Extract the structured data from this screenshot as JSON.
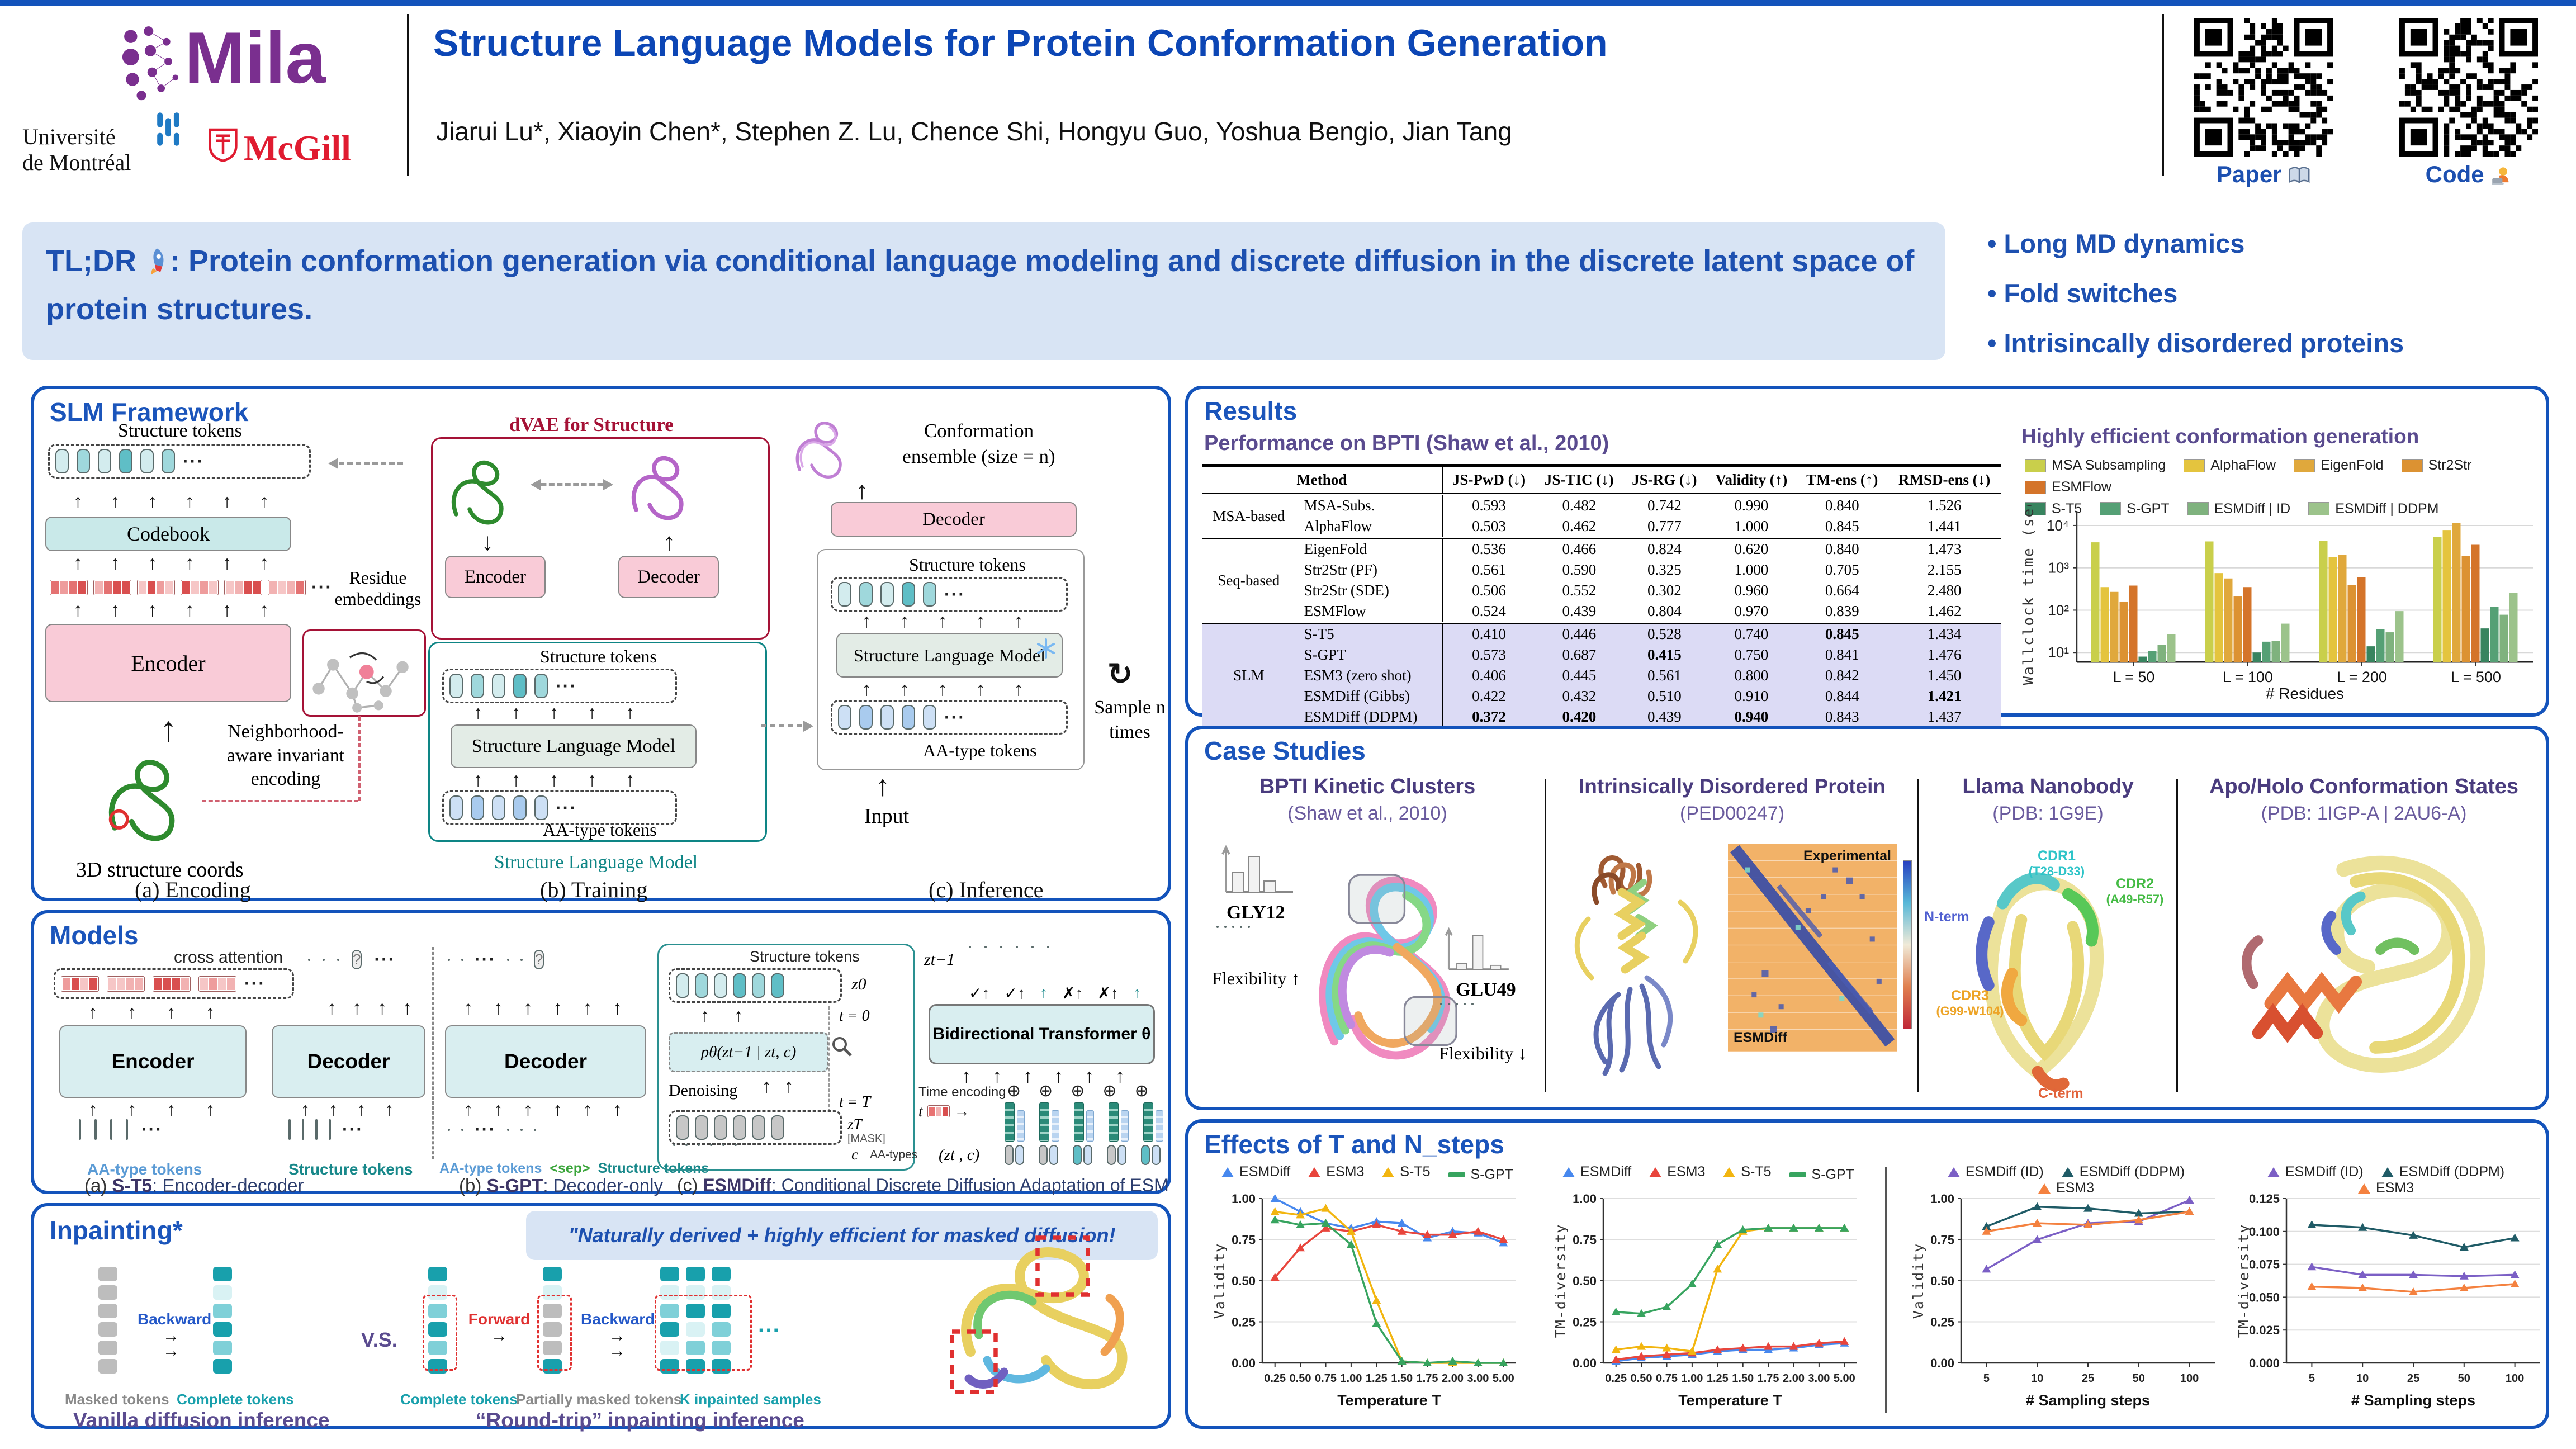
{
  "header": {
    "title": "Structure Language Models for Protein Conformation Generation",
    "authors": "Jiarui Lu*, Xiaoyin Chen*, Stephen Z. Lu, Chence Shi, Hongyu Guo, Yoshua Bengio, Jian Tang",
    "logos": {
      "mila": "Mila",
      "udem1": "Université",
      "udem2": "de Montréal",
      "mcgill": "McGill"
    },
    "paper_label": "Paper",
    "code_label": "Code"
  },
  "tldr": {
    "prefix": "TL;DR",
    "body": ": Protein conformation generation via conditional language modeling and discrete diffusion in the discrete latent space of protein structures."
  },
  "highlights": [
    "Long MD dynamics",
    "Fold switches",
    "Intrisincally disordered proteins"
  ],
  "framework": {
    "title": "SLM Framework",
    "structure_tokens": "Structure tokens",
    "codebook": "Codebook",
    "residue_embeddings": "Residue embeddings",
    "encoder": "Encoder",
    "decoder": "Decoder",
    "neighborhood1": "Neighborhood-",
    "neighborhood2": "aware invariant",
    "neighborhood3": "encoding",
    "coords": "3D structure coords",
    "caption_a": "(a) Encoding",
    "dvae": "dVAE for Structure",
    "slm": "Structure Language Model",
    "aa_tokens": "AA-type tokens",
    "slm_caption": "Structure Language Model",
    "caption_b": "(b) Training",
    "ensemble1": "Conformation",
    "ensemble2": "ensemble (size = n)",
    "sample1": "Sample n",
    "sample2": "times",
    "input": "Input",
    "caption_c": "(c) Inference"
  },
  "models": {
    "title": "Models",
    "cross_attention": "cross attention",
    "encoder": "Encoder",
    "decoder": "Decoder",
    "aa_tokens": "AA-type tokens",
    "structure_tokens": "Structure tokens",
    "sep": "<sep>",
    "captions": [
      {
        "pre": "(a) ",
        "name": "S-T5",
        "rest": ": Encoder-decoder"
      },
      {
        "pre": "(b) ",
        "name": "S-GPT",
        "rest": ": Decoder-only"
      },
      {
        "pre": "(c) ",
        "name": "ESMDiff",
        "rest": ": Conditional Discrete Diffusion Adaptation of ESM"
      }
    ],
    "esmdiff": {
      "structure_tokens": "Structure tokens",
      "z0": "z0",
      "t0": "t = 0",
      "p": "pθ(zt−1 | zt, c)",
      "denoising": "Denoising",
      "tT": "t = T",
      "zT": "zT",
      "mask": "[MASK]",
      "c": "c",
      "aa_types": "AA-types",
      "zt1": "zt−1",
      "transformer": "Bidirectional Transformer θ",
      "time_encoding": "Time encoding",
      "t": "t",
      "ztc": "(zt , c)"
    }
  },
  "inpainting": {
    "title": "Inpainting*",
    "quote": "\"Naturally derived + highly efficient for masked diffusion!",
    "backward": "Backward",
    "forward": "Forward",
    "vs": "V.S.",
    "masked": "Masked tokens",
    "complete": "Complete tokens",
    "partially": "Partially masked tokens",
    "ksamples": "K inpainted samples",
    "caption_left": "Vanilla diffusion inference",
    "caption_right": "“Round-trip” inpainting inference"
  },
  "results": {
    "title": "Results",
    "table_title": "Performance on BPTI (Shaw et al., 2010)",
    "table": {
      "method_header": "Method",
      "metric_headers": [
        "JS-PwD (↓)",
        "JS-TIC (↓)",
        "JS-RG (↓)",
        "Validity (↑)",
        "TM-ens (↑)",
        "RMSD-ens (↓)"
      ],
      "groups": [
        {
          "name": "MSA-based",
          "highlight": false,
          "rows": [
            {
              "method": "MSA-Subs.",
              "values": [
                "0.593",
                "0.482",
                "0.742",
                "0.990",
                "0.840",
                "1.526"
              ],
              "bold": []
            },
            {
              "method": "AlphaFlow",
              "values": [
                "0.503",
                "0.462",
                "0.777",
                "1.000",
                "0.845",
                "1.441"
              ],
              "bold": []
            }
          ]
        },
        {
          "name": "Seq-based",
          "highlight": false,
          "rows": [
            {
              "method": "EigenFold",
              "values": [
                "0.536",
                "0.466",
                "0.824",
                "0.620",
                "0.840",
                "1.473"
              ],
              "bold": []
            },
            {
              "method": "Str2Str (PF)",
              "values": [
                "0.561",
                "0.590",
                "0.325",
                "1.000",
                "0.705",
                "2.155"
              ],
              "bold": []
            },
            {
              "method": "Str2Str (SDE)",
              "values": [
                "0.506",
                "0.552",
                "0.302",
                "0.960",
                "0.664",
                "2.480"
              ],
              "bold": []
            },
            {
              "method": "ESMFlow",
              "values": [
                "0.524",
                "0.439",
                "0.804",
                "0.970",
                "0.839",
                "1.462"
              ],
              "bold": []
            }
          ]
        },
        {
          "name": "SLM",
          "highlight": true,
          "rows": [
            {
              "method": "S-T5",
              "values": [
                "0.410",
                "0.446",
                "0.528",
                "0.740",
                "0.845",
                "1.434"
              ],
              "bold": [
                4
              ]
            },
            {
              "method": "S-GPT",
              "values": [
                "0.573",
                "0.687",
                "0.415",
                "0.750",
                "0.841",
                "1.476"
              ],
              "bold": [
                2
              ]
            },
            {
              "method": "ESM3 (zero shot)",
              "values": [
                "0.406",
                "0.445",
                "0.561",
                "0.800",
                "0.842",
                "1.450"
              ],
              "bold": []
            },
            {
              "method": "ESMDiff (Gibbs)",
              "values": [
                "0.422",
                "0.432",
                "0.510",
                "0.910",
                "0.844",
                "1.421"
              ],
              "bold": [
                5
              ]
            },
            {
              "method": "ESMDiff (DDPM)",
              "values": [
                "0.372",
                "0.420",
                "0.439",
                "0.940",
                "0.843",
                "1.437"
              ],
              "bold": [
                0,
                1,
                3
              ]
            }
          ]
        }
      ]
    }
  },
  "case_studies": {
    "title": "Case Studies",
    "bpti": {
      "title": "BPTI Kinetic Clusters",
      "subtitle": "(Shaw et al., 2010)",
      "gly": "GLY12",
      "glu": "GLU49",
      "flex_up": "Flexibility",
      "flex_down": "Flexibility"
    },
    "idp": {
      "title": "Intrinsically Disordered Protein",
      "subtitle": "(PED00247)",
      "experimental": "Experimental",
      "model": "ESMDiff"
    },
    "llama": {
      "title": "Llama Nanobody",
      "subtitle": "(PDB: 1G9E)",
      "cdr1": "CDR1",
      "cdr1r": "(T28-D33)",
      "cdr2": "CDR2",
      "cdr2r": "(A49-R57)",
      "cdr3": "CDR3",
      "cdr3r": "(G99-W104)",
      "nterm": "N-term",
      "cterm": "C-term"
    },
    "apoholo": {
      "title": "Apo/Holo Conformation States",
      "subtitle": "(PDB: 1IGP-A | 2AU6-A)"
    }
  },
  "effects": {
    "title": "Effects of T and N_steps"
  },
  "chart_data": [
    {
      "type": "bar",
      "title": "Highly efficient conformation generation",
      "ylabel": "Wallclock time (sec)",
      "xlabel": "# Residues",
      "yscale": "log",
      "ylim": [
        6,
        22000
      ],
      "yticks": [
        10,
        100,
        1000,
        10000
      ],
      "ytick_labels": [
        "10¹",
        "10²",
        "10³",
        "10⁴"
      ],
      "categories": [
        "L = 50",
        "L = 100",
        "L = 200",
        "L = 500"
      ],
      "legend_rows": [
        5,
        4
      ],
      "series": [
        {
          "name": "MSA Subsampling",
          "color": "#c9cf4b",
          "values": [
            4000,
            4200,
            4300,
            5300
          ]
        },
        {
          "name": "AlphaFlow",
          "color": "#e4c43e",
          "values": [
            350,
            750,
            1800,
            7800
          ]
        },
        {
          "name": "EigenFold",
          "color": "#e0a83c",
          "values": [
            270,
            560,
            2000,
            11500
          ]
        },
        {
          "name": "Str2Str",
          "color": "#dc9232",
          "values": [
            160,
            210,
            390,
            1900
          ]
        },
        {
          "name": "ESMFlow",
          "color": "#d4742a",
          "values": [
            380,
            350,
            600,
            3500
          ]
        },
        {
          "name": "S-T5",
          "color": "#38845f",
          "values": [
            8,
            10,
            14,
            37
          ]
        },
        {
          "name": "S-GPT",
          "color": "#55a075",
          "values": [
            11,
            18,
            35,
            120
          ]
        },
        {
          "name": "ESMDiff | ID",
          "color": "#7fb27e",
          "values": [
            15,
            19,
            30,
            78
          ]
        },
        {
          "name": "ESMDiff | DDPM",
          "color": "#9cc38b",
          "values": [
            27,
            48,
            95,
            260
          ]
        }
      ]
    },
    {
      "type": "line",
      "ylabel": "Validity",
      "xlabel": "Temperature T",
      "ymin": 0,
      "ymax": 1,
      "yticks": [
        0,
        0.25,
        0.5,
        0.75,
        1
      ],
      "ytick_labels": [
        "0.00",
        "0.25",
        "0.50",
        "0.75",
        "1.00"
      ],
      "x": [
        "0.25",
        "0.50",
        "0.75",
        "1.00",
        "1.25",
        "1.50",
        "1.75",
        "2.00",
        "3.00",
        "5.00"
      ],
      "series": [
        {
          "name": "ESMDiff",
          "color": "#4788ee",
          "marker": "tri",
          "values": [
            1.0,
            0.92,
            0.85,
            0.82,
            0.86,
            0.85,
            0.76,
            0.8,
            0.79,
            0.73
          ]
        },
        {
          "name": "ESM3",
          "color": "#e8453c",
          "marker": "tri",
          "values": [
            0.52,
            0.7,
            0.82,
            0.8,
            0.84,
            0.8,
            0.78,
            0.78,
            0.8,
            0.75
          ]
        },
        {
          "name": "S-T5",
          "color": "#f2b50f",
          "marker": "tri",
          "values": [
            0.92,
            0.9,
            0.94,
            0.8,
            0.38,
            0.01,
            0.0,
            0.0,
            0.0,
            0.0
          ]
        },
        {
          "name": "S-GPT",
          "color": "#37a45f",
          "marker": "dash",
          "values": [
            0.87,
            0.84,
            0.85,
            0.72,
            0.24,
            0.01,
            0.0,
            0.01,
            0.0,
            0.0
          ]
        }
      ]
    },
    {
      "type": "line",
      "ylabel": "TM-diversity",
      "xlabel": "Temperature T",
      "ymin": 0,
      "ymax": 1,
      "yticks": [
        0,
        0.25,
        0.5,
        0.75,
        1
      ],
      "ytick_labels": [
        "0.00",
        "0.25",
        "0.50",
        "0.75",
        "1.00"
      ],
      "x": [
        "0.25",
        "0.50",
        "0.75",
        "1.00",
        "1.25",
        "1.50",
        "1.75",
        "2.00",
        "3.00",
        "5.00"
      ],
      "series": [
        {
          "name": "ESMDiff",
          "color": "#4788ee",
          "marker": "tri",
          "values": [
            0.01,
            0.03,
            0.04,
            0.05,
            0.07,
            0.08,
            0.08,
            0.09,
            0.11,
            0.12
          ]
        },
        {
          "name": "ESM3",
          "color": "#e8453c",
          "marker": "tri",
          "values": [
            0.02,
            0.04,
            0.05,
            0.06,
            0.08,
            0.09,
            0.1,
            0.1,
            0.12,
            0.13
          ]
        },
        {
          "name": "S-T5",
          "color": "#f2b50f",
          "marker": "tri",
          "values": [
            0.08,
            0.1,
            0.09,
            0.07,
            0.57,
            0.8,
            0.82,
            0.82,
            0.82,
            0.82
          ]
        },
        {
          "name": "S-GPT",
          "color": "#37a45f",
          "marker": "dash",
          "values": [
            0.31,
            0.3,
            0.34,
            0.48,
            0.72,
            0.81,
            0.82,
            0.82,
            0.82,
            0.82
          ]
        }
      ]
    },
    {
      "type": "line",
      "ylabel": "Validity",
      "xlabel": "# Sampling steps",
      "ymin": 0,
      "ymax": 1,
      "yticks": [
        0,
        0.25,
        0.5,
        0.75,
        1
      ],
      "ytick_labels": [
        "0.00",
        "0.25",
        "0.50",
        "0.75",
        "1.00"
      ],
      "x": [
        "5",
        "10",
        "25",
        "50",
        "100"
      ],
      "series": [
        {
          "name": "ESMDiff (ID)",
          "color": "#7b5fc5",
          "marker": "tri",
          "values": [
            0.57,
            0.75,
            0.85,
            0.86,
            0.99
          ]
        },
        {
          "name": "ESMDiff (DDPM)",
          "color": "#1f5b66",
          "marker": "tri",
          "values": [
            0.83,
            0.95,
            0.94,
            0.91,
            0.92
          ]
        },
        {
          "name": "ESM3",
          "color": "#f4813f",
          "marker": "tri",
          "values": [
            0.8,
            0.85,
            0.84,
            0.87,
            0.92
          ]
        }
      ]
    },
    {
      "type": "line",
      "ylabel": "TM-diversity",
      "xlabel": "# Sampling steps",
      "ymin": 0,
      "ymax": 0.125,
      "yticks": [
        0,
        0.025,
        0.05,
        0.075,
        0.1,
        0.125
      ],
      "ytick_labels": [
        "0.000",
        "0.025",
        "0.050",
        "0.075",
        "0.100",
        "0.125"
      ],
      "x": [
        "5",
        "10",
        "25",
        "50",
        "100"
      ],
      "series": [
        {
          "name": "ESMDiff (ID)",
          "color": "#7b5fc5",
          "marker": "tri",
          "values": [
            0.073,
            0.067,
            0.067,
            0.066,
            0.067
          ]
        },
        {
          "name": "ESMDiff (DDPM)",
          "color": "#1f5b66",
          "marker": "tri",
          "values": [
            0.105,
            0.103,
            0.097,
            0.088,
            0.095
          ]
        },
        {
          "name": "ESM3",
          "color": "#f4813f",
          "marker": "tri",
          "values": [
            0.058,
            0.057,
            0.054,
            0.057,
            0.06
          ]
        }
      ]
    }
  ]
}
